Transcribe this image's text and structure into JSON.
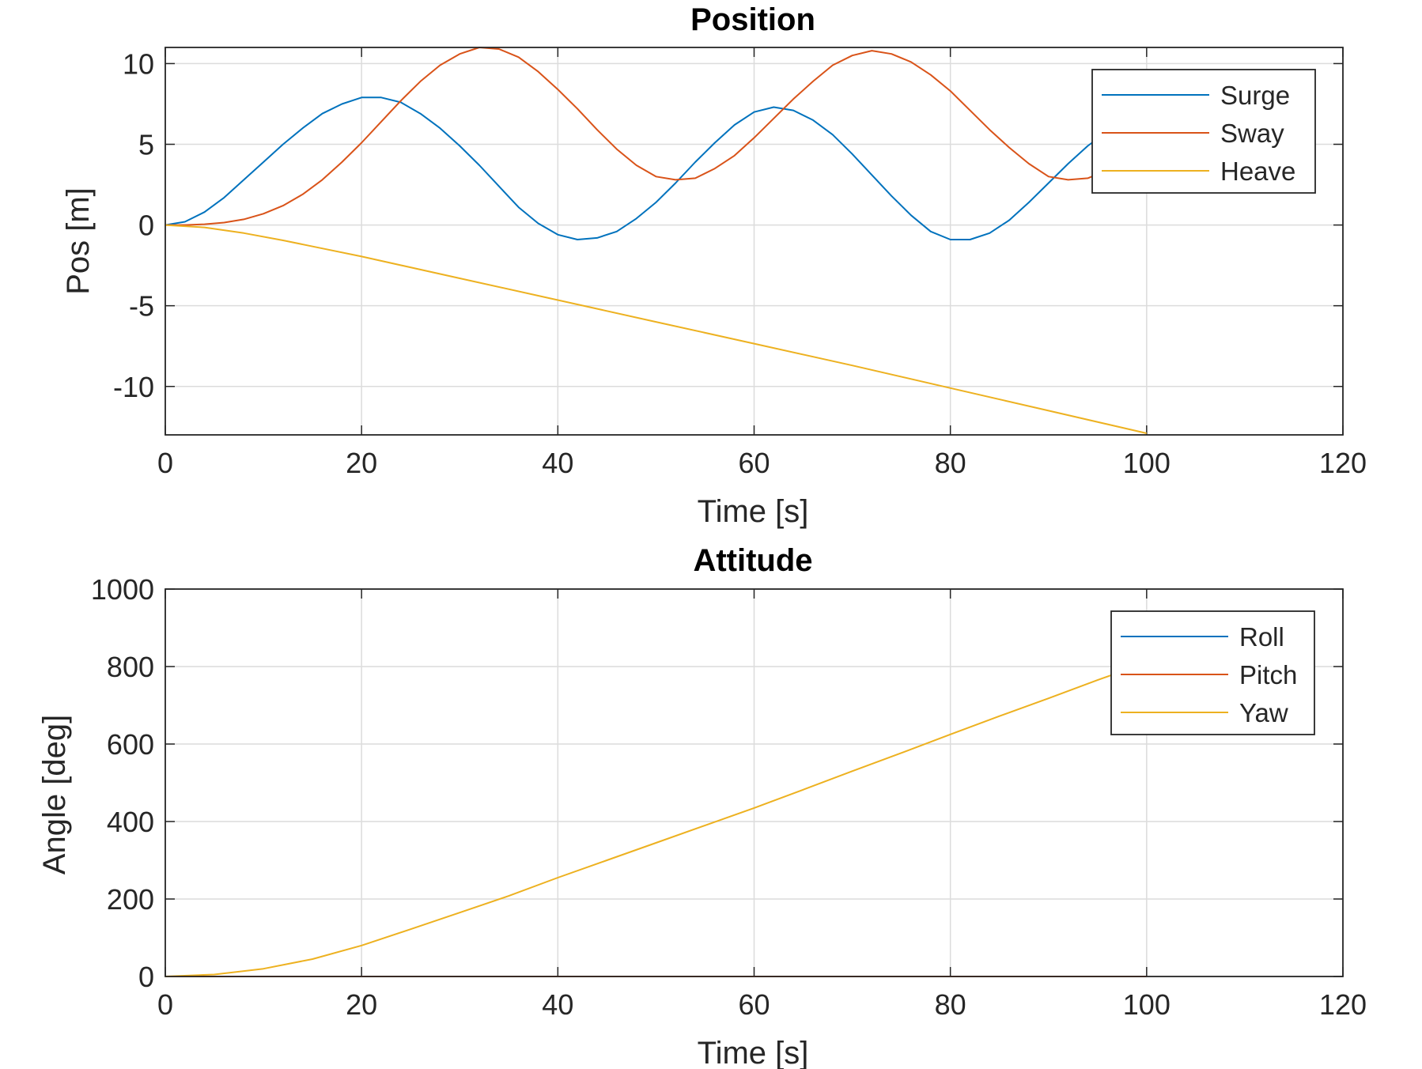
{
  "chart_data": [
    {
      "type": "line",
      "title": "Position",
      "xlabel": "Time [s]",
      "ylabel": "Pos [m]",
      "xlim": [
        0,
        120
      ],
      "ylim": [
        -13,
        11
      ],
      "xticks": [
        0,
        20,
        40,
        60,
        80,
        100,
        120
      ],
      "yticks": [
        -10,
        -5,
        0,
        5,
        10
      ],
      "grid": true,
      "legend_position": "top-right",
      "series": [
        {
          "name": "Surge",
          "color": "#0072BD",
          "x": [
            0,
            2,
            4,
            6,
            8,
            10,
            12,
            14,
            16,
            18,
            20,
            22,
            24,
            26,
            28,
            30,
            32,
            34,
            36,
            38,
            40,
            42,
            44,
            46,
            48,
            50,
            52,
            54,
            56,
            58,
            60,
            62,
            64,
            66,
            68,
            70,
            72,
            74,
            76,
            78,
            80,
            82,
            84,
            86,
            88,
            90,
            92,
            94,
            96,
            98,
            100
          ],
          "y": [
            0,
            0.2,
            0.8,
            1.7,
            2.8,
            3.9,
            5.0,
            6.0,
            6.9,
            7.5,
            7.9,
            7.9,
            7.6,
            6.9,
            6.0,
            4.9,
            3.7,
            2.4,
            1.1,
            0.1,
            -0.6,
            -0.9,
            -0.8,
            -0.4,
            0.4,
            1.4,
            2.6,
            3.9,
            5.1,
            6.2,
            7.0,
            7.3,
            7.1,
            6.5,
            5.6,
            4.4,
            3.1,
            1.8,
            0.6,
            -0.4,
            -0.9,
            -0.9,
            -0.5,
            0.3,
            1.4,
            2.6,
            3.8,
            4.9,
            5.8,
            6.5,
            6.8
          ]
        },
        {
          "name": "Sway",
          "color": "#D95319",
          "x": [
            0,
            2,
            4,
            6,
            8,
            10,
            12,
            14,
            16,
            18,
            20,
            22,
            24,
            26,
            28,
            30,
            32,
            34,
            36,
            38,
            40,
            42,
            44,
            46,
            48,
            50,
            52,
            54,
            56,
            58,
            60,
            62,
            64,
            66,
            68,
            70,
            72,
            74,
            76,
            78,
            80,
            82,
            84,
            86,
            88,
            90,
            92,
            94,
            96,
            98,
            100
          ],
          "y": [
            0,
            0,
            0.05,
            0.15,
            0.35,
            0.7,
            1.2,
            1.9,
            2.8,
            3.9,
            5.1,
            6.4,
            7.7,
            8.9,
            9.9,
            10.6,
            11.0,
            10.9,
            10.4,
            9.5,
            8.4,
            7.2,
            5.9,
            4.7,
            3.7,
            3.0,
            2.8,
            2.9,
            3.5,
            4.3,
            5.4,
            6.6,
            7.8,
            8.9,
            9.9,
            10.5,
            10.8,
            10.6,
            10.1,
            9.3,
            8.3,
            7.1,
            5.9,
            4.8,
            3.8,
            3.0,
            2.8,
            2.9,
            3.4,
            4.2,
            5.1
          ]
        },
        {
          "name": "Heave",
          "color": "#EDB120",
          "x": [
            0,
            4,
            8,
            12,
            16,
            20,
            30,
            40,
            50,
            60,
            70,
            80,
            90,
            100
          ],
          "y": [
            0,
            -0.15,
            -0.5,
            -0.95,
            -1.45,
            -1.95,
            -3.3,
            -4.65,
            -6.0,
            -7.35,
            -8.7,
            -10.1,
            -11.5,
            -12.9
          ]
        }
      ]
    },
    {
      "type": "line",
      "title": "Attitude",
      "xlabel": "Time [s]",
      "ylabel": "Angle [deg]",
      "xlim": [
        0,
        120
      ],
      "ylim": [
        0,
        1000
      ],
      "xticks": [
        0,
        20,
        40,
        60,
        80,
        100,
        120
      ],
      "yticks": [
        0,
        200,
        400,
        600,
        800,
        1000
      ],
      "grid": true,
      "legend_position": "top-right",
      "series": [
        {
          "name": "Roll",
          "color": "#0072BD",
          "x": [
            0,
            100
          ],
          "y": [
            0,
            0
          ]
        },
        {
          "name": "Pitch",
          "color": "#D95319",
          "x": [
            0,
            100
          ],
          "y": [
            0,
            0
          ]
        },
        {
          "name": "Yaw",
          "color": "#EDB120",
          "x": [
            0,
            5,
            10,
            15,
            20,
            25,
            30,
            35,
            40,
            45,
            50,
            55,
            60,
            65,
            70,
            75,
            80,
            85,
            90,
            95,
            100
          ],
          "y": [
            0,
            5,
            20,
            45,
            80,
            122,
            165,
            208,
            255,
            300,
            345,
            390,
            435,
            482,
            530,
            577,
            625,
            672,
            718,
            765,
            810
          ]
        }
      ]
    }
  ]
}
